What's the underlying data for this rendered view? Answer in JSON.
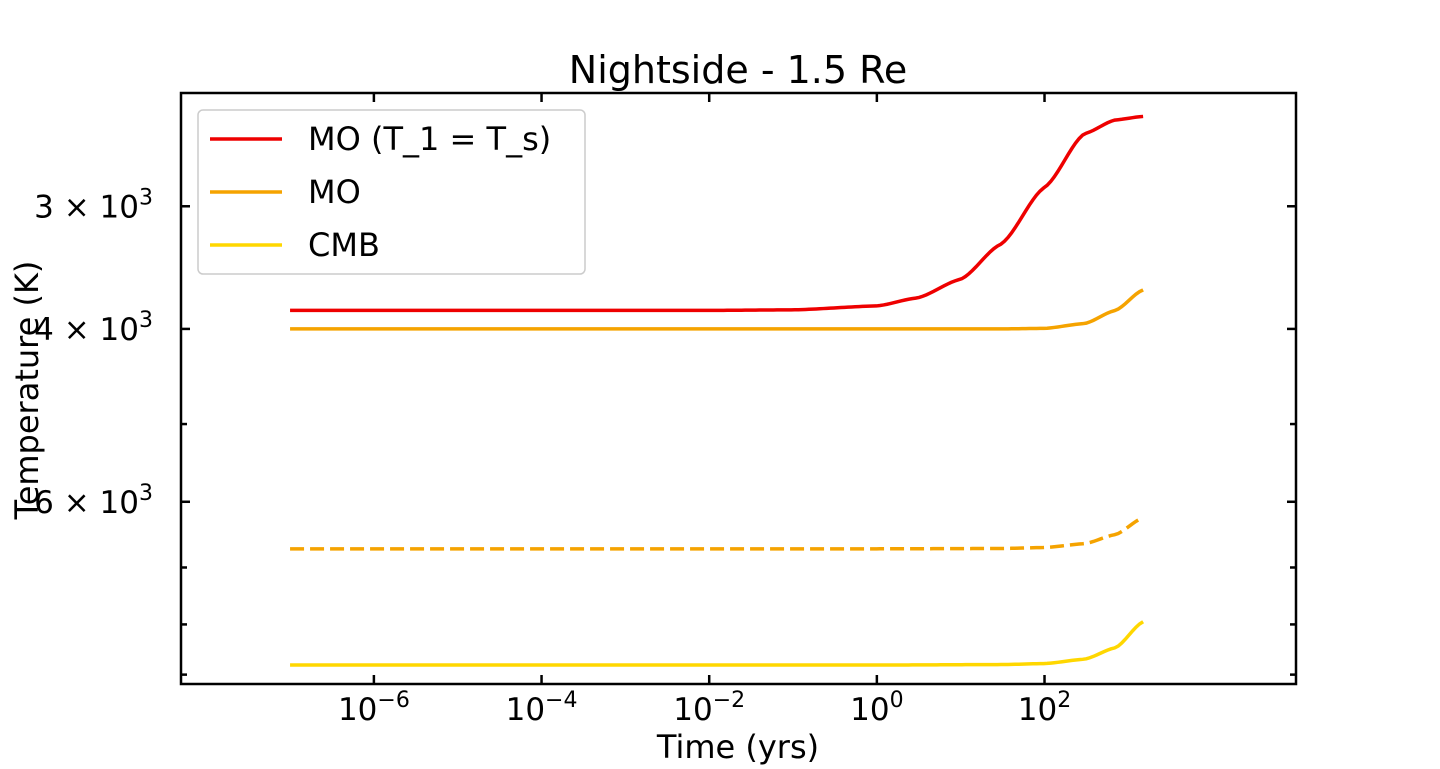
{
  "chart_data": {
    "type": "line",
    "title": "Nightside - 1.5 Re",
    "xlabel": "Time (yrs)",
    "ylabel": "Temperature (K)",
    "xscale": "log",
    "yscale": "log",
    "y_inverted": true,
    "xlim": [
      5e-09,
      100000.0
    ],
    "ylim": [
      2300,
      9200
    ],
    "x_ticks": [
      {
        "value": 1e-06,
        "base": "10",
        "exp": "−6"
      },
      {
        "value": 0.0001,
        "base": "10",
        "exp": "−4"
      },
      {
        "value": 0.01,
        "base": "10",
        "exp": "−2"
      },
      {
        "value": 1,
        "base": "10",
        "exp": "0"
      },
      {
        "value": 100,
        "base": "10",
        "exp": "2"
      }
    ],
    "y_ticks": [
      {
        "value": 3000,
        "mant": "3 × 10",
        "exp": "3"
      },
      {
        "value": 4000,
        "mant": "4 × 10",
        "exp": "3"
      },
      {
        "value": 6000,
        "mant": "6 × 10",
        "exp": "3"
      }
    ],
    "y_minor_ticks": [
      5000,
      7000,
      8000,
      9000
    ],
    "grid": false,
    "legend_position": "top-left",
    "series": [
      {
        "name": "MO (T_1 = T_s)",
        "color": "#ee0000",
        "style": "solid",
        "in_legend": true,
        "x": [
          1e-07,
          1e-06,
          0.0001,
          0.01,
          0.1,
          1,
          3,
          10,
          30,
          100,
          300,
          700,
          1500
        ],
        "y": [
          3830,
          3830,
          3830,
          3830,
          3825,
          3790,
          3720,
          3560,
          3280,
          2870,
          2530,
          2450,
          2430
        ]
      },
      {
        "name": "MO",
        "color": "#f5a300",
        "style": "solid",
        "in_legend": true,
        "x": [
          1e-07,
          0.0001,
          1,
          30,
          100,
          300,
          700,
          1500
        ],
        "y": [
          4000,
          4000,
          4000,
          4000,
          3995,
          3950,
          3830,
          3650
        ]
      },
      {
        "name": "",
        "color": "#f5a300",
        "style": "dashed",
        "in_legend": false,
        "x": [
          1e-07,
          0.0001,
          1,
          30,
          100,
          300,
          700,
          1500
        ],
        "y": [
          6700,
          6700,
          6700,
          6695,
          6680,
          6620,
          6480,
          6230
        ]
      },
      {
        "name": "CMB",
        "color": "#ffd700",
        "style": "solid",
        "in_legend": true,
        "x": [
          1e-07,
          0.0001,
          1,
          30,
          100,
          300,
          700,
          1500
        ],
        "y": [
          8800,
          8800,
          8800,
          8790,
          8770,
          8680,
          8450,
          7950
        ]
      }
    ]
  }
}
